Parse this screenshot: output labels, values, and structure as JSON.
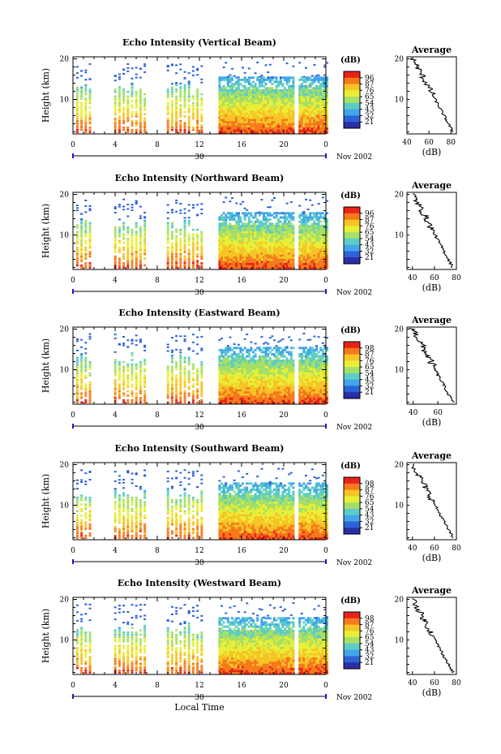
{
  "chart_data": [
    {
      "type": "heatmap",
      "title": "Echo Intensity (Vertical Beam)",
      "ylabel": "Height (km)",
      "x_ticks": [
        "0",
        "4",
        "8",
        "12",
        "16",
        "20",
        "0"
      ],
      "y_ticks": [
        "20",
        "10"
      ],
      "date_label": "30",
      "month_label": "Nov 2002",
      "xlim": [
        0,
        24
      ],
      "ylim": [
        1.5,
        20.5
      ],
      "colorbar": {
        "title": "(dB)",
        "levels": [
          96,
          87,
          76,
          65,
          54,
          43,
          32,
          21
        ],
        "colors": [
          "#e8231a",
          "#f57a1c",
          "#f6c425",
          "#e9ee36",
          "#a5df68",
          "#5dccc6",
          "#42a6ea",
          "#2d63d8",
          "#2a2fa5"
        ]
      },
      "profile": {
        "title": "Average",
        "xlabel": "(dB)",
        "x_ticks": [
          "40",
          "60",
          "80"
        ],
        "xlim": [
          40,
          85
        ],
        "y_ticks": [
          "20",
          "10"
        ]
      }
    },
    {
      "type": "heatmap",
      "title": "Echo Intensity (Northward Beam)",
      "ylabel": "Height (km)",
      "x_ticks": [
        "0",
        "4",
        "8",
        "12",
        "16",
        "20",
        "0"
      ],
      "y_ticks": [
        "20",
        "10"
      ],
      "date_label": "30",
      "month_label": "Nov 2002",
      "xlim": [
        0,
        24
      ],
      "ylim": [
        1.5,
        20.5
      ],
      "colorbar": {
        "title": "(dB)",
        "levels": [
          96,
          87,
          76,
          65,
          54,
          43,
          32,
          21
        ],
        "colors": [
          "#e8231a",
          "#f57a1c",
          "#f6c425",
          "#e9ee36",
          "#a5df68",
          "#5dccc6",
          "#42a6ea",
          "#2d63d8",
          "#2a2fa5"
        ]
      },
      "profile": {
        "title": "Average",
        "xlabel": "(dB)",
        "x_ticks": [
          "40",
          "60",
          "80"
        ],
        "xlim": [
          35,
          80
        ],
        "y_ticks": [
          "20",
          "10"
        ]
      }
    },
    {
      "type": "heatmap",
      "title": "Echo Intensity (Eastward Beam)",
      "ylabel": "Height (km)",
      "x_ticks": [
        "0",
        "4",
        "8",
        "12",
        "16",
        "20",
        "0"
      ],
      "y_ticks": [
        "20",
        "10"
      ],
      "date_label": "30",
      "month_label": "Nov 2002",
      "xlim": [
        0,
        24
      ],
      "ylim": [
        1.5,
        20.5
      ],
      "colorbar": {
        "title": "(dB)",
        "levels": [
          98,
          87,
          76,
          65,
          54,
          43,
          32,
          21
        ],
        "colors": [
          "#e8231a",
          "#f57a1c",
          "#f6c425",
          "#e9ee36",
          "#a5df68",
          "#5dccc6",
          "#42a6ea",
          "#2d63d8",
          "#2a2fa5"
        ]
      },
      "profile": {
        "title": "Average",
        "xlabel": "(dB)",
        "x_ticks": [
          "40",
          "60"
        ],
        "xlim": [
          35,
          75
        ],
        "y_ticks": [
          "20",
          "10"
        ]
      }
    },
    {
      "type": "heatmap",
      "title": "Echo Intensity (Southward Beam)",
      "ylabel": "Height (km)",
      "x_ticks": [
        "0",
        "4",
        "8",
        "12",
        "16",
        "20",
        "0"
      ],
      "y_ticks": [
        "20",
        "10"
      ],
      "date_label": "30",
      "month_label": "Nov 2002",
      "xlim": [
        0,
        24
      ],
      "ylim": [
        1.5,
        20.5
      ],
      "colorbar": {
        "title": "(dB)",
        "levels": [
          98,
          87,
          76,
          65,
          54,
          43,
          32,
          21
        ],
        "colors": [
          "#e8231a",
          "#f57a1c",
          "#f6c425",
          "#e9ee36",
          "#a5df68",
          "#5dccc6",
          "#42a6ea",
          "#2d63d8",
          "#2a2fa5"
        ]
      },
      "profile": {
        "title": "Average",
        "xlabel": "(dB)",
        "x_ticks": [
          "40",
          "60",
          "80"
        ],
        "xlim": [
          35,
          80
        ],
        "y_ticks": [
          "20",
          "10"
        ]
      }
    },
    {
      "type": "heatmap",
      "title": "Echo Intensity (Westward Beam)",
      "ylabel": "Height (km)",
      "x_ticks": [
        "0",
        "4",
        "8",
        "12",
        "16",
        "20",
        "0"
      ],
      "y_ticks": [
        "20",
        "10"
      ],
      "date_label": "30",
      "month_label": "Nov 2002",
      "xlabel": "Local Time",
      "xlim": [
        0,
        24
      ],
      "ylim": [
        1.5,
        20.5
      ],
      "colorbar": {
        "title": "(dB)",
        "levels": [
          98,
          87,
          76,
          65,
          54,
          43,
          32,
          21
        ],
        "colors": [
          "#e8231a",
          "#f57a1c",
          "#f6c425",
          "#e9ee36",
          "#a5df68",
          "#5dccc6",
          "#42a6ea",
          "#2d63d8",
          "#2a2fa5"
        ]
      },
      "profile": {
        "title": "Average",
        "xlabel": "(dB)",
        "x_ticks": [
          "40",
          "60",
          "80"
        ],
        "xlim": [
          35,
          80
        ],
        "y_ticks": [
          "20",
          "10"
        ]
      }
    }
  ]
}
